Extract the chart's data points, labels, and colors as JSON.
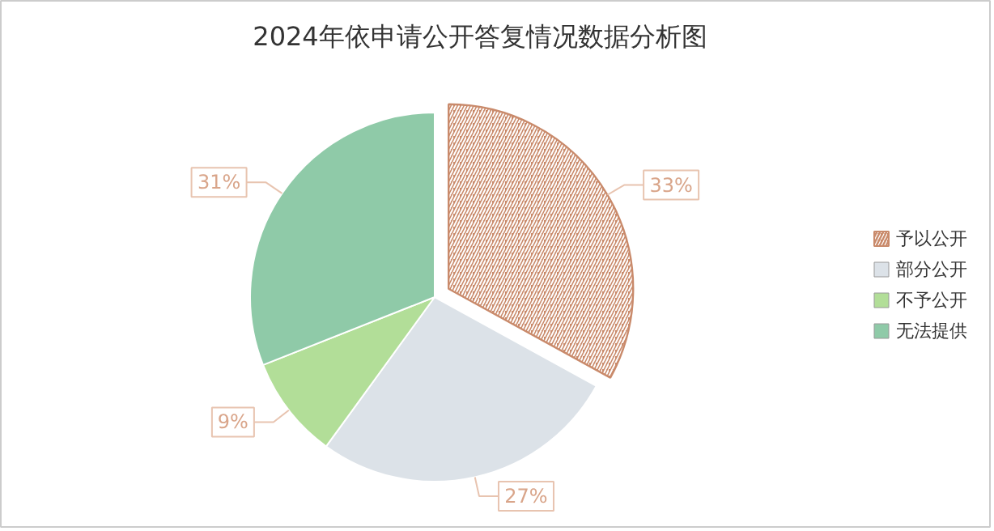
{
  "chart_data": {
    "type": "pie",
    "title": "2024年依申请公开答复情况数据分析图",
    "categories": [
      "予以公开",
      "部分公开",
      "不予公开",
      "无法提供"
    ],
    "values": [
      33,
      27,
      9,
      31
    ],
    "value_labels": [
      "33%",
      "27%",
      "9%",
      "31%"
    ],
    "colors": [
      "#c98a6b",
      "#dce2e8",
      "#b2de98",
      "#8fcaa8"
    ],
    "legend": "right"
  }
}
